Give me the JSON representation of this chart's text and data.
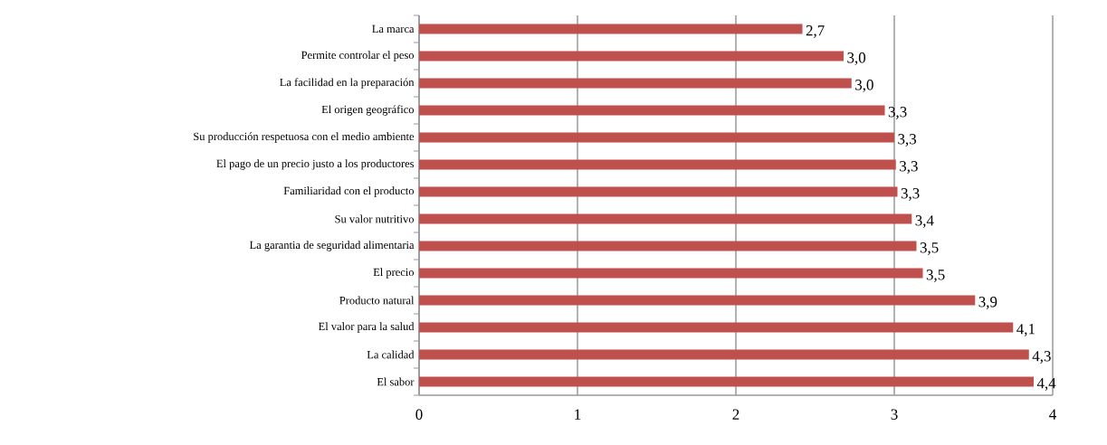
{
  "chart_data": {
    "type": "bar",
    "orientation": "horizontal",
    "categories": [
      "La marca",
      "Permite controlar el peso",
      "La facilidad en la preparación",
      "El origen geográfico",
      "Su producción respetuosa con el medio ambiente",
      "El pago de un precio justo a los productores",
      "Familiaridad con el producto",
      "Su valor nutritivo",
      "La garantia de seguridad alimentaria",
      "El precio",
      "Producto natural",
      "El valor para la salud",
      "La calidad",
      "El sabor"
    ],
    "values": [
      2.42,
      2.68,
      2.73,
      2.94,
      3.0,
      3.01,
      3.02,
      3.11,
      3.14,
      3.18,
      3.51,
      3.75,
      3.85,
      3.88
    ],
    "annotations": [
      {
        "text": "2,7",
        "x": 2.42,
        "y": "La marca"
      },
      {
        "text": "3,0",
        "x": 2.68,
        "y": "Permite controlar el peso"
      },
      {
        "text": "3,0",
        "x": 2.73,
        "y": "La facilidad en la preparación"
      },
      {
        "text": "3,3",
        "x": 2.94,
        "y": "El origen geográfico"
      },
      {
        "text": "3,3",
        "x": 3.0,
        "y": "Su producción respetuosa con el medio ambiente"
      },
      {
        "text": "3,3",
        "x": 3.01,
        "y": "El pago de un precio justo a los productores"
      },
      {
        "text": "3,3",
        "x": 3.02,
        "y": "Familiaridad con el producto"
      },
      {
        "text": "3,4",
        "x": 3.11,
        "y": "Su valor nutritivo"
      },
      {
        "text": "3,5",
        "x": 3.14,
        "y": "La garantia de seguridad alimentaria"
      },
      {
        "text": "3,5",
        "x": 3.18,
        "y": "El precio"
      },
      {
        "text": "3,9",
        "x": 3.51,
        "y": "Producto natural"
      },
      {
        "text": "4,1",
        "x": 3.75,
        "y": "El valor para la salud"
      },
      {
        "text": "4,3",
        "x": 3.85,
        "y": "La calidad"
      },
      {
        "text": "4,4",
        "x": 3.88,
        "y": "El sabor"
      }
    ],
    "color": "#c0504d",
    "xlim": [
      0,
      4
    ],
    "xticks": [
      0,
      1,
      2,
      3,
      4
    ],
    "grid": "x"
  }
}
